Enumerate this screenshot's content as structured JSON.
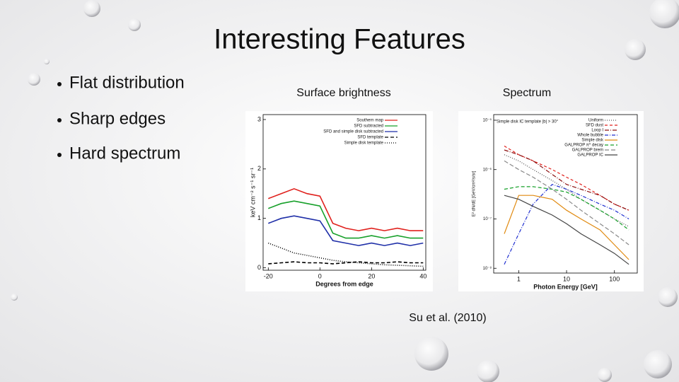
{
  "title": "Interesting Features",
  "bullets": [
    "Flat distribution",
    "Sharp edges",
    "Hard spectrum"
  ],
  "figures": [
    {
      "title": "Surface brightness",
      "x_label": "Degrees from edge",
      "y_label": "keV cm⁻² s⁻¹ sr⁻¹",
      "log": false,
      "xlim": [
        -22,
        41
      ],
      "ylim": [
        -0.05,
        3.1
      ],
      "xticks": [
        -20,
        0,
        20,
        40
      ],
      "yticks": [
        0,
        1,
        2,
        3
      ],
      "x": [
        -20,
        -15,
        -10,
        -5,
        0,
        5,
        10,
        15,
        20,
        25,
        30,
        35,
        40
      ],
      "series": [
        {
          "name": "Southern map",
          "color": "#e0201c",
          "dash": "",
          "values": [
            1.4,
            1.5,
            1.6,
            1.5,
            1.45,
            0.9,
            0.8,
            0.75,
            0.8,
            0.75,
            0.8,
            0.75,
            0.75
          ]
        },
        {
          "name": "SFD subtracted",
          "color": "#17a02a",
          "dash": "",
          "values": [
            1.2,
            1.3,
            1.35,
            1.3,
            1.25,
            0.7,
            0.6,
            0.6,
            0.65,
            0.6,
            0.65,
            0.6,
            0.6
          ]
        },
        {
          "name": "SFD and simple disk subtracted",
          "color": "#1f2fa8",
          "dash": "",
          "values": [
            0.9,
            1.0,
            1.05,
            1.0,
            0.95,
            0.55,
            0.5,
            0.45,
            0.5,
            0.45,
            0.5,
            0.45,
            0.5
          ]
        },
        {
          "name": "SFD template",
          "color": "#000000",
          "dash": "5 3",
          "values": [
            0.08,
            0.1,
            0.12,
            0.1,
            0.1,
            0.08,
            0.1,
            0.12,
            0.1,
            0.1,
            0.12,
            0.1,
            0.1
          ]
        },
        {
          "name": "Simple disk template",
          "color": "#000000",
          "dash": "1 2",
          "values": [
            0.5,
            0.4,
            0.3,
            0.25,
            0.2,
            0.15,
            0.12,
            0.1,
            0.08,
            0.06,
            0.05,
            0.04,
            0.03
          ]
        }
      ]
    },
    {
      "title": "Spectrum",
      "x_label": "Photon Energy [GeV]",
      "y_label": "E² dN/dE [GeV/cm²/s/sr]",
      "note": "Simple disk IC template |b| > 30°",
      "log": true,
      "xlim": [
        0.3,
        300
      ],
      "ylim": [
        8e-09,
        1.3e-05
      ],
      "xticks": [
        1,
        10,
        100
      ],
      "yticks": [
        {
          "value": 1e-08,
          "label": "10⁻⁸"
        },
        {
          "value": 1e-07,
          "label": "10⁻⁷"
        },
        {
          "value": 1e-06,
          "label": "10⁻⁶"
        },
        {
          "value": 1e-05,
          "label": "10⁻⁵"
        }
      ],
      "x": [
        0.5,
        1,
        2,
        5,
        10,
        20,
        50,
        100,
        200
      ],
      "series": [
        {
          "name": "Uniform",
          "color": "#555555",
          "dash": "1 2",
          "values": [
            2e-06,
            1.5e-06,
            1e-06,
            6e-07,
            4e-07,
            2.5e-07,
            1.5e-07,
            1e-07,
            7e-08
          ]
        },
        {
          "name": "SFD dust",
          "color": "#e0201c",
          "dash": "4 3",
          "values": [
            3e-06,
            2e-06,
            1.5e-06,
            1e-06,
            7e-07,
            5e-07,
            3e-07,
            2e-07,
            1.5e-07
          ]
        },
        {
          "name": "Loop I",
          "color": "#8b1010",
          "dash": "6 2 1 2",
          "values": [
            2.5e-06,
            2e-06,
            1.5e-06,
            8e-07,
            5e-07,
            4e-07,
            3e-07,
            2e-07,
            1.5e-07
          ]
        },
        {
          "name": "Whole bubble",
          "color": "#1f2fd0",
          "dash": "5 2 1 2",
          "values": [
            1.2e-08,
            5e-08,
            2e-07,
            5e-07,
            4e-07,
            3e-07,
            2e-07,
            1.5e-07,
            1e-07
          ]
        },
        {
          "name": "Simple disk",
          "color": "#e08a10",
          "dash": "",
          "values": [
            5e-08,
            3e-07,
            3e-07,
            2.5e-07,
            1.5e-07,
            1e-07,
            6e-08,
            3e-08,
            1.5e-08
          ]
        },
        {
          "name": "GALPROP π⁰ decay",
          "color": "#17a02a",
          "dash": "5 3",
          "values": [
            4e-07,
            4.5e-07,
            4.5e-07,
            4e-07,
            3.5e-07,
            2.5e-07,
            1.5e-07,
            1e-07,
            6e-08
          ]
        },
        {
          "name": "GALPROP brem",
          "color": "#888888",
          "dash": "6 3",
          "values": [
            1.5e-06,
            1e-06,
            7e-07,
            4e-07,
            2.5e-07,
            1.5e-07,
            8e-08,
            5e-08,
            3e-08
          ]
        },
        {
          "name": "GALPROP IC",
          "color": "#444444",
          "dash": "",
          "values": [
            3e-07,
            2.5e-07,
            1.8e-07,
            1.2e-07,
            8e-08,
            5e-08,
            3e-08,
            2e-08,
            1.2e-08
          ]
        }
      ]
    }
  ],
  "caption": "Su et al. (2010)"
}
